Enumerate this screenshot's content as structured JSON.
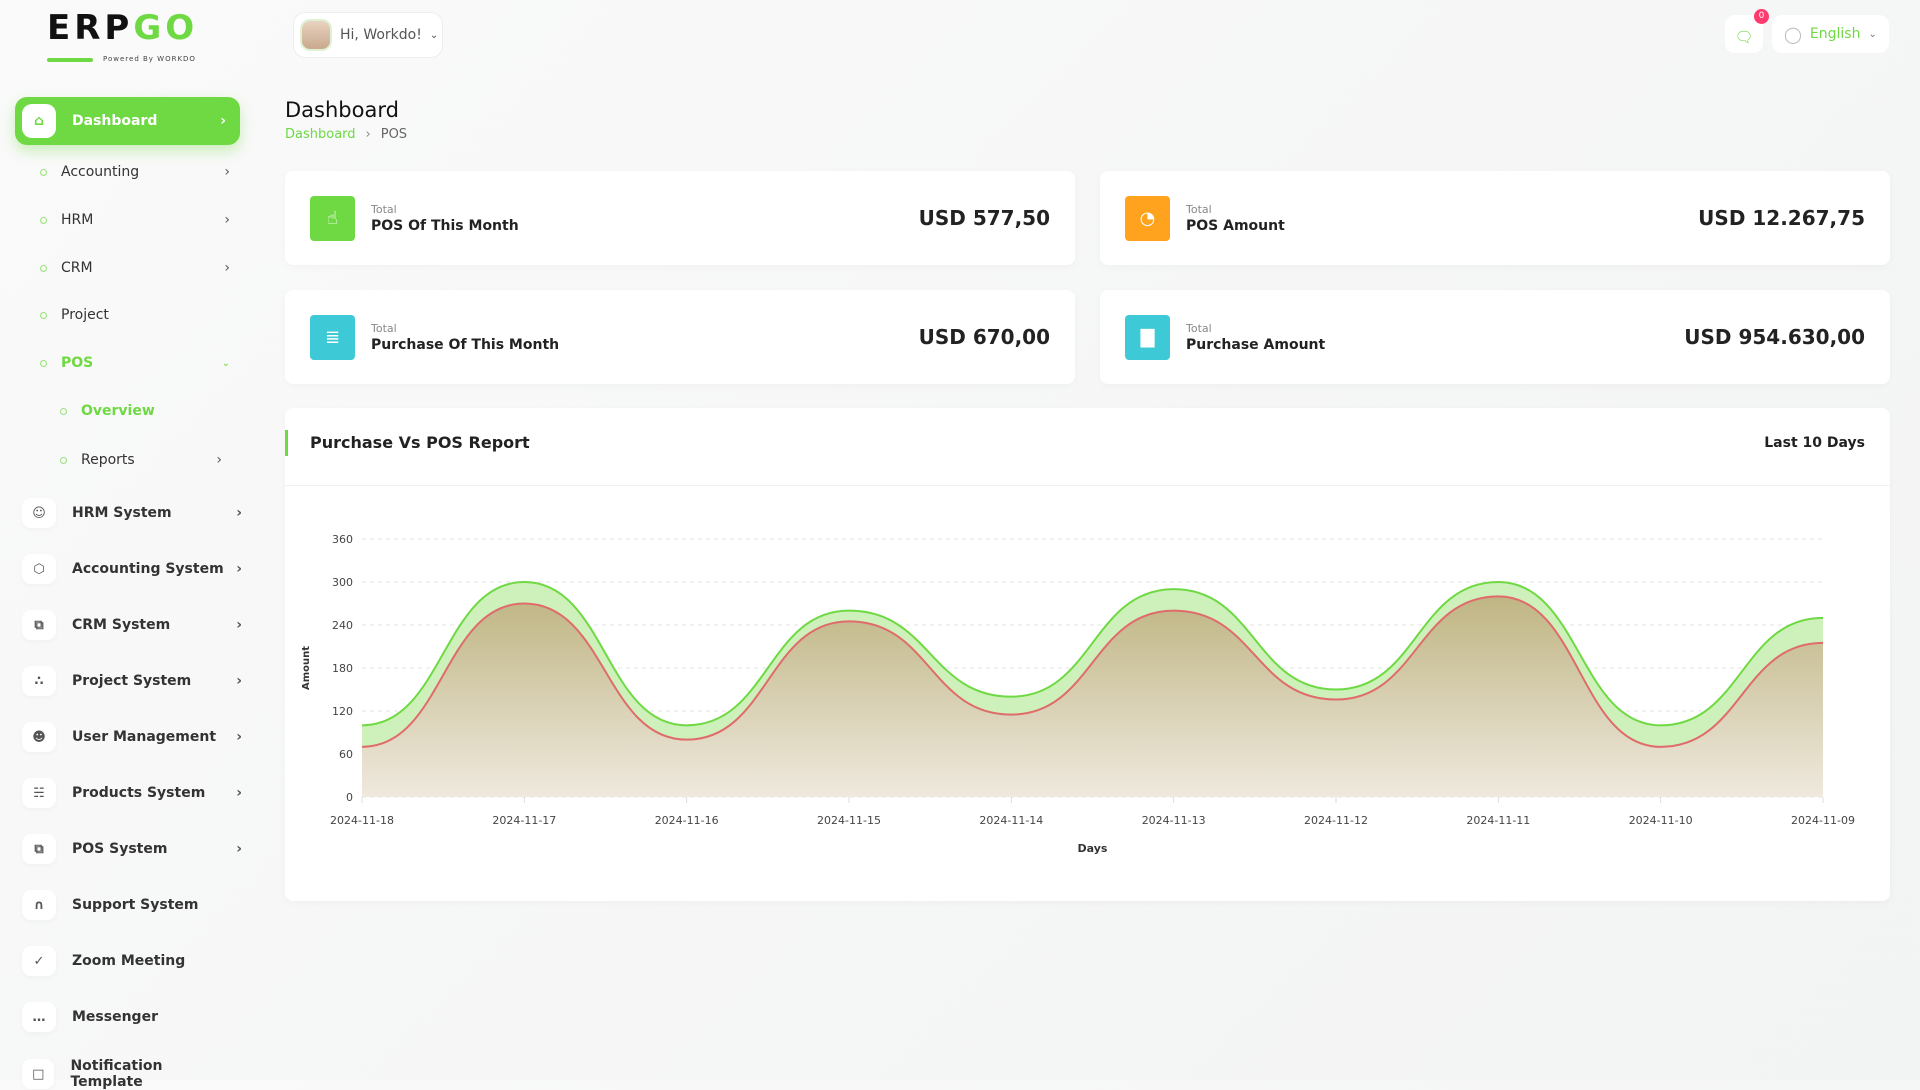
{
  "logo": {
    "text_a": "ERP",
    "text_b": "GO",
    "powered": "Powered By WORKDO"
  },
  "header": {
    "greeting": "Hi, Workdo!",
    "notification_count": "0",
    "language": "English"
  },
  "page": {
    "title": "Dashboard",
    "breadcrumb": [
      "Dashboard",
      "POS"
    ]
  },
  "sidebar": {
    "active": "Dashboard",
    "sub": [
      {
        "label": "Accounting",
        "chev": true
      },
      {
        "label": "HRM",
        "chev": true
      },
      {
        "label": "CRM",
        "chev": true
      },
      {
        "label": "Project",
        "chev": false
      },
      {
        "label": "POS",
        "open": true
      },
      {
        "label": "Overview",
        "active": true
      },
      {
        "label": "Reports",
        "chev": true
      }
    ],
    "systems": [
      {
        "label": "HRM System",
        "icon": "user-icon",
        "chev": true
      },
      {
        "label": "Accounting System",
        "icon": "box-icon",
        "chev": true
      },
      {
        "label": "CRM System",
        "icon": "layers-icon",
        "chev": true
      },
      {
        "label": "Project System",
        "icon": "share-icon",
        "chev": true
      },
      {
        "label": "User Management",
        "icon": "users-icon",
        "chev": true
      },
      {
        "label": "Products System",
        "icon": "cart-icon",
        "chev": true
      },
      {
        "label": "POS System",
        "icon": "layers-icon",
        "chev": true
      },
      {
        "label": "Support System",
        "icon": "headphones-icon",
        "chev": false
      },
      {
        "label": "Zoom Meeting",
        "icon": "user-check-icon",
        "chev": false
      },
      {
        "label": "Messenger",
        "icon": "message-icon",
        "chev": false
      },
      {
        "label": "Notification Template",
        "icon": "notification-icon",
        "chev": false
      }
    ]
  },
  "stats": [
    {
      "small": "Total",
      "label": "POS Of This Month",
      "value": "USD 577,50",
      "color": "#6fd943",
      "icon": "hand-pointer-icon"
    },
    {
      "small": "Total",
      "label": "POS Amount",
      "value": "USD 12.267,75",
      "color": "#ffa21d",
      "icon": "pie-chart-icon"
    },
    {
      "small": "Total",
      "label": "Purchase Of This Month",
      "value": "USD 670,00",
      "color": "#3ec9d6",
      "icon": "clipboard-icon"
    },
    {
      "small": "Total",
      "label": "Purchase Amount",
      "value": "USD 954.630,00",
      "color": "#3ec9d6",
      "icon": "bar-chart-icon"
    }
  ],
  "report": {
    "title": "Purchase Vs POS Report",
    "range": "Last 10 Days"
  },
  "chart_data": {
    "type": "area",
    "title": "Purchase Vs POS Report",
    "xlabel": "Days",
    "ylabel": "Amount",
    "categories": [
      "2024-11-18",
      "2024-11-17",
      "2024-11-16",
      "2024-11-15",
      "2024-11-14",
      "2024-11-13",
      "2024-11-12",
      "2024-11-11",
      "2024-11-10",
      "2024-11-09"
    ],
    "series": [
      {
        "values": [
          100,
          300,
          100,
          260,
          140,
          290,
          150,
          300,
          100,
          250
        ],
        "color": "#6fd943"
      },
      {
        "values": [
          70,
          270,
          80,
          245,
          115,
          260,
          136,
          280,
          70,
          215
        ],
        "color": "#e06b6b"
      }
    ],
    "ylim": [
      0,
      360
    ],
    "yticks": [
      0,
      60,
      120,
      180,
      240,
      300,
      360
    ],
    "grid": true
  }
}
